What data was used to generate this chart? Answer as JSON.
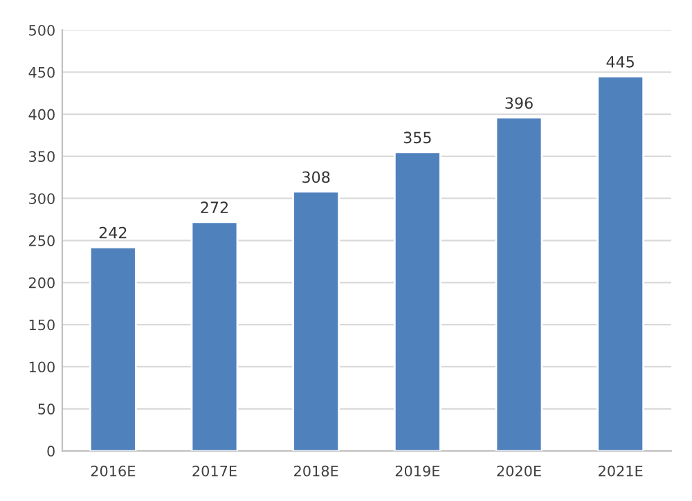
{
  "chart_data": {
    "type": "bar",
    "categories": [
      "2016E",
      "2017E",
      "2018E",
      "2019E",
      "2020E",
      "2021E"
    ],
    "values": [
      242,
      272,
      308,
      355,
      396,
      445
    ],
    "color": "#4f81bd",
    "ylim": [
      0,
      500
    ],
    "yticks": [
      0,
      50,
      100,
      150,
      200,
      250,
      300,
      350,
      400,
      450,
      500
    ],
    "grid": "y",
    "data_labels": true
  }
}
